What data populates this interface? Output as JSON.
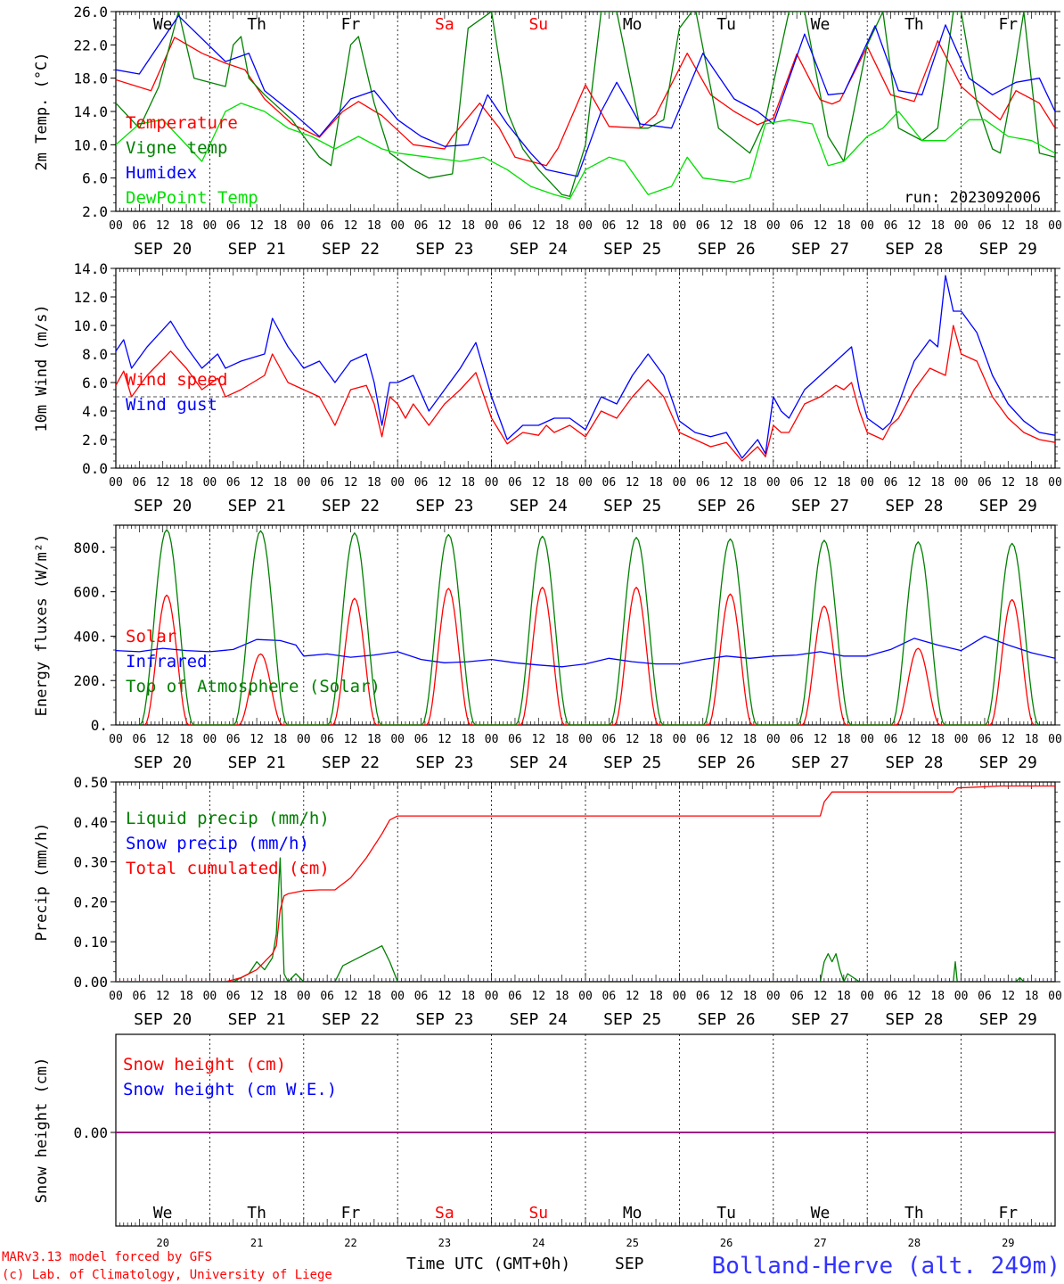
{
  "day_labels": [
    "We",
    "Th",
    "Fr",
    "Sa",
    "Su",
    "Mo",
    "Tu",
    "We",
    "Th",
    "Fr"
  ],
  "day_colors": [
    "#000000",
    "#000000",
    "#000000",
    "#ff0000",
    "#ff0000",
    "#000000",
    "#000000",
    "#000000",
    "#000000",
    "#000000"
  ],
  "date_labels": [
    "SEP 20",
    "SEP 21",
    "SEP 22",
    "SEP 23",
    "SEP 24",
    "SEP 25",
    "SEP 26",
    "SEP 27",
    "SEP 28",
    "SEP 29"
  ],
  "date_numbers": [
    "20",
    "21",
    "22",
    "23",
    "24",
    "25",
    "26",
    "27",
    "28",
    "29"
  ],
  "hour_ticks": [
    "00",
    "06",
    "12",
    "18"
  ],
  "hour_tick_last": "00",
  "colors": {
    "red": "#ff0000",
    "dark_green": "#008000",
    "blue": "#0000ff",
    "light_green": "#00e000",
    "purple": "#800080",
    "title_blue": "#3333ff"
  },
  "footer": {
    "credit_line1": "MARv3.13 model forced by GFS",
    "credit_line2": "(c) Lab. of Climatology, University of Liege",
    "axis_title": "Time UTC (GMT+0h)",
    "month": "SEP",
    "station": "Bolland-Herve (alt. 249m)"
  },
  "chart_data": [
    {
      "id": "temp",
      "type": "line",
      "ylabel": "2m Temp. (°C)",
      "ylim": [
        2.0,
        26.0
      ],
      "yticks": [
        "2.0",
        "6.0",
        "10.0",
        "14.0",
        "18.0",
        "22.0",
        "26.0"
      ],
      "annotation": "run: 2023092006",
      "xlim_hours": [
        0,
        240
      ],
      "series": [
        {
          "name": "Temperature",
          "color": "#ff0000",
          "x": [
            0,
            9,
            15,
            22,
            28,
            33,
            38,
            45,
            52,
            58,
            62,
            68,
            76,
            84,
            86,
            93,
            98,
            102,
            110,
            113,
            120,
            126,
            134,
            138,
            146,
            152,
            158,
            164,
            168,
            174,
            180,
            183,
            185,
            192,
            198,
            204,
            210,
            216,
            222,
            226,
            230,
            236,
            240
          ],
          "y": [
            17.8,
            16.5,
            22.9,
            21.0,
            19.8,
            19.0,
            15.5,
            12.5,
            10.9,
            14.0,
            15.2,
            13.5,
            10.0,
            9.5,
            11.0,
            15.0,
            12.0,
            8.5,
            7.5,
            9.6,
            17.2,
            12.2,
            12.0,
            13.6,
            21.0,
            16.0,
            14.0,
            12.4,
            13.2,
            20.9,
            15.4,
            14.9,
            15.3,
            21.8,
            16.0,
            15.2,
            22.5,
            17.0,
            14.5,
            13.0,
            16.5,
            15.0,
            12.0
          ]
        },
        {
          "name": "Vigne temp",
          "color": "#008000",
          "x": [
            0,
            6,
            11,
            16,
            20,
            28,
            30,
            32,
            34,
            38,
            45,
            48,
            52,
            55,
            60,
            62,
            66,
            70,
            76,
            80,
            86,
            90,
            96,
            100,
            104,
            108,
            110,
            114,
            116,
            120,
            124,
            128,
            134,
            136,
            140,
            144,
            148,
            154,
            158,
            162,
            166,
            172,
            176,
            182,
            186,
            192,
            196,
            200,
            204,
            206,
            210,
            214,
            216,
            220,
            224,
            226,
            228,
            232,
            236,
            240
          ],
          "y": [
            15.0,
            12.0,
            17.0,
            26.0,
            18.0,
            17.0,
            22.0,
            23.0,
            18.0,
            16.0,
            13.0,
            11.0,
            8.5,
            7.5,
            22.0,
            23.0,
            15.0,
            9.0,
            7.0,
            6.0,
            6.5,
            24.0,
            26.0,
            14.0,
            9.5,
            7.0,
            6.0,
            4.0,
            3.8,
            10.0,
            26.0,
            26.0,
            12.0,
            12.0,
            13.0,
            24.0,
            26.5,
            12.0,
            10.5,
            9.0,
            13.0,
            26.0,
            26.0,
            11.0,
            8.0,
            22.0,
            26.0,
            12.0,
            11.0,
            10.5,
            12.0,
            26.0,
            26.0,
            15.0,
            9.5,
            9.0,
            14.0,
            26.0,
            9.0,
            8.5
          ]
        },
        {
          "name": "Humidex",
          "color": "#0000ff",
          "x": [
            0,
            6,
            16,
            28,
            34,
            38,
            46,
            52,
            60,
            66,
            72,
            78,
            84,
            90,
            95,
            100,
            106,
            110,
            118,
            124,
            128,
            134,
            142,
            150,
            158,
            164,
            168,
            176,
            182,
            186,
            194,
            200,
            206,
            212,
            218,
            224,
            230,
            236,
            240
          ],
          "y": [
            19.0,
            18.5,
            25.5,
            20.0,
            21.0,
            16.5,
            13.5,
            11.0,
            15.5,
            16.5,
            13.0,
            11.0,
            9.8,
            10.0,
            16.0,
            12.5,
            9.0,
            7.0,
            6.2,
            14.0,
            17.5,
            12.5,
            12.0,
            21.0,
            15.5,
            14.0,
            12.5,
            23.3,
            16.0,
            16.2,
            24.3,
            16.5,
            16.0,
            24.4,
            18.0,
            16.0,
            17.5,
            18.0,
            14.0
          ]
        },
        {
          "name": "DewPoint Temp",
          "color": "#00e000",
          "x": [
            0,
            6,
            12,
            16,
            22,
            28,
            32,
            38,
            44,
            50,
            56,
            62,
            68,
            72,
            80,
            88,
            94,
            100,
            106,
            112,
            116,
            120,
            126,
            130,
            136,
            142,
            146,
            150,
            158,
            162,
            166,
            172,
            178,
            182,
            186,
            192,
            196,
            200,
            206,
            212,
            218,
            222,
            228,
            234,
            240
          ],
          "y": [
            10.0,
            12.5,
            13.0,
            11.0,
            8.0,
            14.0,
            15.0,
            14.0,
            12.0,
            11.0,
            9.5,
            11.0,
            9.5,
            9.0,
            8.5,
            8.0,
            8.5,
            7.0,
            5.0,
            4.0,
            3.5,
            7.0,
            8.5,
            8.0,
            4.0,
            5.0,
            8.5,
            6.0,
            5.5,
            6.0,
            12.5,
            13.0,
            12.5,
            7.5,
            8.0,
            11.0,
            12.0,
            14.0,
            10.5,
            10.5,
            13.0,
            13.0,
            11.0,
            10.5,
            9.0
          ]
        }
      ]
    },
    {
      "id": "wind",
      "type": "line",
      "ylabel": "10m Wind (m/s)",
      "ylim": [
        0.0,
        14.0
      ],
      "yticks": [
        "0.0",
        "2.0",
        "4.0",
        "6.0",
        "8.0",
        "10.0",
        "12.0",
        "14.0"
      ],
      "reference_line": 5.0,
      "xlim_hours": [
        0,
        240
      ],
      "series": [
        {
          "name": "Wind speed",
          "color": "#ff0000",
          "x": [
            0,
            2,
            4,
            8,
            14,
            18,
            22,
            26,
            28,
            32,
            38,
            40,
            44,
            48,
            52,
            56,
            60,
            64,
            66,
            68,
            70,
            72,
            74,
            76,
            80,
            84,
            88,
            92,
            96,
            100,
            104,
            108,
            110,
            112,
            116,
            120,
            124,
            128,
            132,
            136,
            140,
            144,
            148,
            152,
            156,
            160,
            164,
            166,
            168,
            170,
            172,
            176,
            180,
            184,
            186,
            188,
            190,
            192,
            196,
            198,
            200,
            204,
            208,
            212,
            214,
            216,
            220,
            224,
            228,
            232,
            236,
            240
          ],
          "y": [
            5.8,
            6.8,
            5.0,
            6.5,
            8.2,
            7.0,
            5.5,
            6.3,
            5.0,
            5.5,
            6.5,
            8.0,
            6.0,
            5.5,
            5.0,
            3.0,
            5.5,
            5.8,
            4.5,
            2.2,
            5.0,
            4.5,
            3.5,
            4.5,
            3.0,
            4.5,
            5.5,
            6.7,
            3.5,
            1.7,
            2.5,
            2.3,
            3.0,
            2.5,
            3.0,
            2.2,
            4.0,
            3.5,
            5.0,
            6.2,
            5.0,
            2.5,
            2.0,
            1.5,
            1.8,
            0.5,
            1.5,
            0.8,
            3.0,
            2.5,
            2.5,
            4.5,
            5.0,
            5.8,
            5.5,
            6.0,
            4.0,
            2.5,
            2.0,
            3.0,
            3.5,
            5.5,
            7.0,
            6.5,
            10.0,
            8.0,
            7.5,
            5.0,
            3.5,
            2.5,
            2.0,
            1.8
          ]
        },
        {
          "name": "Wind gust",
          "color": "#0000ff",
          "x": [
            0,
            2,
            4,
            8,
            14,
            18,
            22,
            26,
            28,
            32,
            38,
            40,
            42,
            44,
            48,
            52,
            56,
            60,
            64,
            66,
            68,
            70,
            72,
            76,
            80,
            84,
            88,
            92,
            96,
            100,
            104,
            108,
            112,
            116,
            120,
            124,
            128,
            132,
            136,
            140,
            144,
            148,
            152,
            156,
            160,
            164,
            166,
            168,
            170,
            172,
            176,
            180,
            184,
            186,
            188,
            190,
            192,
            196,
            198,
            200,
            204,
            208,
            210,
            212,
            214,
            216,
            220,
            224,
            228,
            232,
            236,
            240
          ],
          "y": [
            8.2,
            9.0,
            7.0,
            8.5,
            10.3,
            8.5,
            7.0,
            8.0,
            7.0,
            7.5,
            8.0,
            10.5,
            9.5,
            8.5,
            7.0,
            7.5,
            6.0,
            7.5,
            8.0,
            6.0,
            3.0,
            6.0,
            6.0,
            6.5,
            4.0,
            5.5,
            7.0,
            8.8,
            5.0,
            2.0,
            3.0,
            3.0,
            3.5,
            3.5,
            2.7,
            5.0,
            4.5,
            6.5,
            8.0,
            6.5,
            3.3,
            2.5,
            2.2,
            2.5,
            0.7,
            2.0,
            1.0,
            5.0,
            4.0,
            3.5,
            5.5,
            6.5,
            7.5,
            8.0,
            8.5,
            5.5,
            3.5,
            2.7,
            3.2,
            4.5,
            7.5,
            9.0,
            8.5,
            13.5,
            11.0,
            11.0,
            9.5,
            6.5,
            4.5,
            3.3,
            2.5,
            2.3
          ]
        }
      ]
    },
    {
      "id": "energy",
      "type": "line",
      "ylabel": "Energy fluxes (W/m²)",
      "ylim": [
        0,
        900
      ],
      "yticks": [
        "0.",
        "200.",
        "400.",
        "600.",
        "800."
      ],
      "xlim_hours": [
        0,
        240
      ],
      "series": [
        {
          "name": "Solar",
          "color": "#ff0000",
          "daily_peaks": [
            585,
            320,
            570,
            615,
            620,
            620,
            590,
            535,
            345,
            565
          ]
        },
        {
          "name": "Infrared",
          "color": "#0000ff",
          "x": [
            0,
            6,
            12,
            18,
            24,
            30,
            36,
            42,
            46,
            48,
            54,
            60,
            66,
            72,
            78,
            84,
            90,
            96,
            102,
            108,
            114,
            120,
            126,
            132,
            138,
            144,
            150,
            156,
            162,
            168,
            174,
            180,
            186,
            192,
            198,
            204,
            210,
            216,
            222,
            228,
            234,
            240
          ],
          "y": [
            335,
            330,
            345,
            335,
            330,
            340,
            385,
            380,
            360,
            310,
            320,
            305,
            315,
            330,
            295,
            280,
            285,
            295,
            280,
            270,
            262,
            275,
            300,
            285,
            275,
            275,
            295,
            310,
            300,
            310,
            315,
            330,
            310,
            310,
            340,
            390,
            360,
            335,
            400,
            360,
            325,
            300
          ]
        },
        {
          "name": "Top of Atmosphere (Solar)",
          "color": "#008000",
          "daily_peaks": [
            880,
            875,
            865,
            858,
            850,
            845,
            838,
            832,
            825,
            818
          ]
        }
      ]
    },
    {
      "id": "precip",
      "type": "line",
      "ylabel": "Precip (mm/h)",
      "ylim": [
        0.0,
        0.5
      ],
      "yticks": [
        "0.00",
        "0.10",
        "0.20",
        "0.30",
        "0.40",
        "0.50"
      ],
      "xlim_hours": [
        0,
        240
      ],
      "series": [
        {
          "name": "Liquid precip (mm/h)",
          "color": "#008000",
          "x": [
            0,
            30,
            34,
            36,
            38,
            40,
            41,
            42,
            43,
            44,
            46,
            48,
            52,
            56,
            58,
            62,
            66,
            68,
            70,
            72,
            180,
            181,
            182,
            183,
            184,
            185,
            186,
            187,
            190,
            214,
            214.5,
            215,
            230,
            231,
            232,
            240
          ],
          "y": [
            0,
            0,
            0.02,
            0.05,
            0.03,
            0.06,
            0.12,
            0.31,
            0.02,
            0.0,
            0.02,
            0.0,
            0.0,
            0.0,
            0.04,
            0.06,
            0.08,
            0.09,
            0.05,
            0.0,
            0.0,
            0.05,
            0.07,
            0.05,
            0.07,
            0.03,
            0.0,
            0.02,
            0.0,
            0.0,
            0.05,
            0.0,
            0.0,
            0.01,
            0.0,
            0.0
          ]
        },
        {
          "name": "Snow precip (mm/h)",
          "color": "#0000ff",
          "x": [
            0,
            240
          ],
          "y": [
            0,
            0
          ]
        },
        {
          "name": "Total cumulated (cm)",
          "color": "#ff0000",
          "x": [
            0,
            28,
            32,
            36,
            40,
            41,
            42,
            43,
            44,
            48,
            52,
            56,
            60,
            64,
            68,
            70,
            72,
            180,
            181,
            183,
            214,
            215,
            226,
            240
          ],
          "y": [
            0,
            0,
            0.01,
            0.03,
            0.07,
            0.09,
            0.18,
            0.215,
            0.22,
            0.228,
            0.23,
            0.23,
            0.26,
            0.31,
            0.37,
            0.405,
            0.415,
            0.415,
            0.45,
            0.475,
            0.475,
            0.485,
            0.49,
            0.49
          ]
        }
      ]
    },
    {
      "id": "snow",
      "type": "line",
      "ylabel": "Snow height (cm)",
      "yticks": [
        "0.00"
      ],
      "xlim_hours": [
        0,
        240
      ],
      "series": [
        {
          "name": "Snow height (cm)",
          "color": "#ff0000",
          "x": [
            0,
            240
          ],
          "y": [
            0,
            0
          ]
        },
        {
          "name": "Snow height (cm W.E.)",
          "color": "#0000ff",
          "x": [
            0,
            240
          ],
          "y": [
            0,
            0
          ]
        }
      ]
    }
  ]
}
